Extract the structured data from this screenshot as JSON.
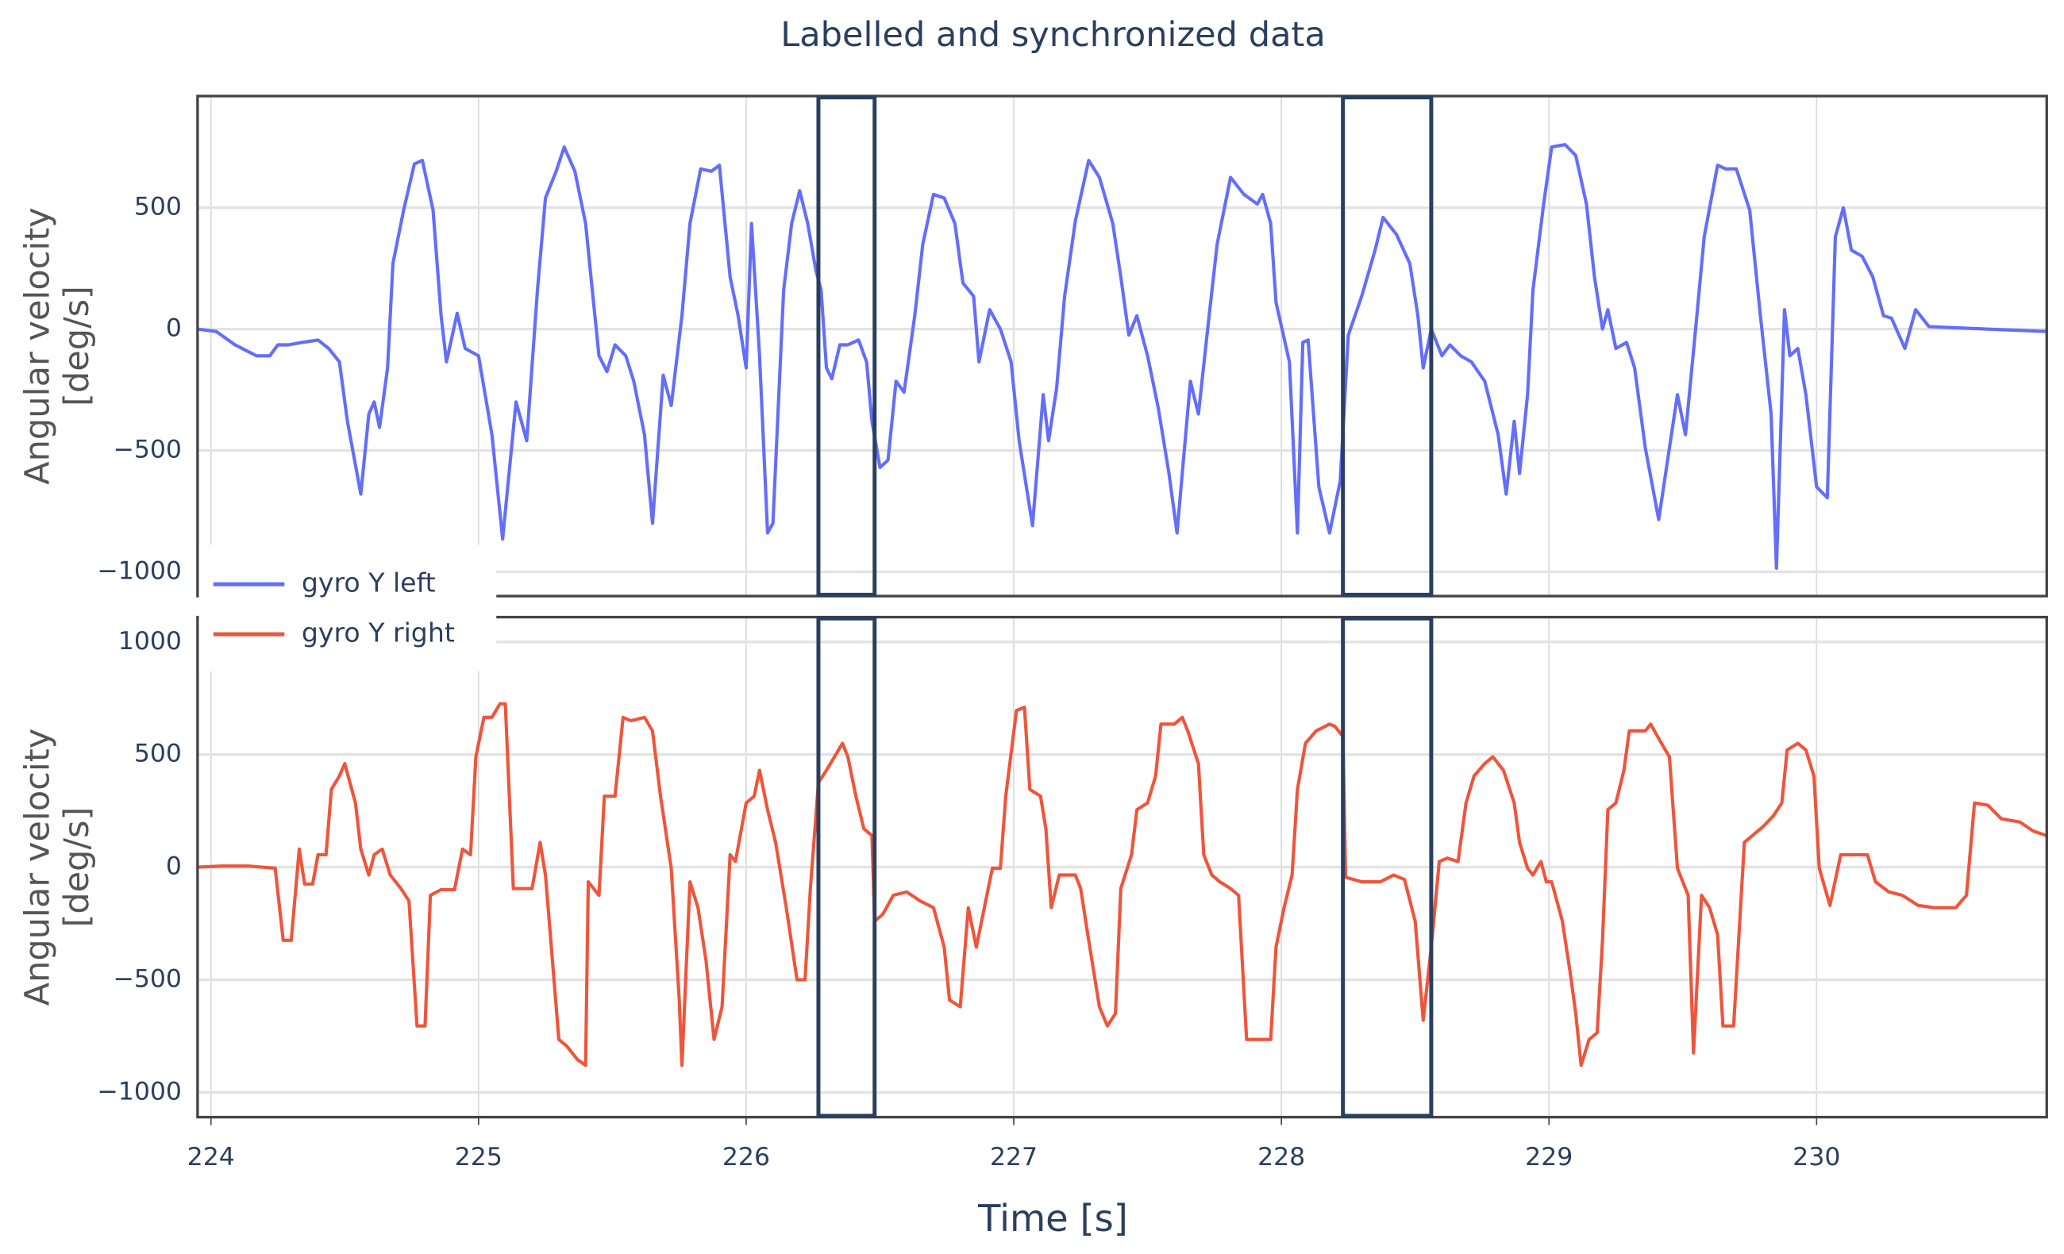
{
  "chart_data": [
    {
      "type": "line",
      "title": "Labelled and synchronized data",
      "ylabel": [
        "Angular velocity",
        "[deg/s]"
      ],
      "x": [
        223.95,
        224.02,
        224.09,
        224.17,
        224.22,
        224.25,
        224.29,
        224.34,
        224.4,
        224.44,
        224.48,
        224.51,
        224.56,
        224.59,
        224.61,
        224.63,
        224.66,
        224.68,
        224.72,
        224.76,
        224.79,
        224.83,
        224.86,
        224.88,
        224.92,
        224.95,
        225.0,
        225.05,
        225.09,
        225.14,
        225.18,
        225.22,
        225.25,
        225.29,
        225.32,
        225.36,
        225.4,
        225.42,
        225.45,
        225.48,
        225.51,
        225.55,
        225.58,
        225.62,
        225.65,
        225.69,
        225.72,
        225.76,
        225.79,
        225.83,
        225.87,
        225.9,
        225.94,
        225.97,
        226.0,
        226.02,
        226.05,
        226.08,
        226.1,
        226.14,
        226.17,
        226.2,
        226.23,
        226.26,
        226.28,
        226.3,
        226.32,
        226.35,
        226.38,
        226.42,
        226.45,
        226.47,
        226.5,
        226.53,
        226.56,
        226.59,
        226.63,
        226.66,
        226.7,
        226.74,
        226.78,
        226.81,
        226.85,
        226.87,
        226.91,
        226.95,
        226.99,
        227.02,
        227.07,
        227.11,
        227.13,
        227.16,
        227.19,
        227.23,
        227.28,
        227.32,
        227.37,
        227.4,
        227.43,
        227.46,
        227.5,
        227.54,
        227.58,
        227.61,
        227.66,
        227.69,
        227.73,
        227.76,
        227.81,
        227.86,
        227.91,
        227.93,
        227.96,
        227.98,
        228.03,
        228.06,
        228.08,
        228.1,
        228.14,
        228.18,
        228.22,
        228.25,
        228.3,
        228.35,
        228.38,
        228.43,
        228.48,
        228.51,
        228.53,
        228.56,
        228.6,
        228.63,
        228.67,
        228.71,
        228.76,
        228.81,
        228.84,
        228.87,
        228.89,
        228.92,
        228.94,
        228.98,
        229.01,
        229.06,
        229.1,
        229.14,
        229.17,
        229.2,
        229.22,
        229.25,
        229.29,
        229.32,
        229.36,
        229.41,
        229.45,
        229.48,
        229.51,
        229.55,
        229.58,
        229.63,
        229.66,
        229.7,
        229.75,
        229.79,
        229.83,
        229.85,
        229.88,
        229.9,
        229.93,
        229.96,
        230.0,
        230.04,
        230.07,
        230.1,
        230.13,
        230.17,
        230.21,
        230.25,
        230.28,
        230.33,
        230.37,
        230.42,
        230.86
      ],
      "series": [
        {
          "name": "gyro Y left",
          "color": "#636efa",
          "values": [
            0,
            -10,
            -65,
            -110,
            -110,
            -65,
            -65,
            -55,
            -45,
            -80,
            -135,
            -380,
            -680,
            -350,
            -300,
            -405,
            -160,
            270,
            490,
            680,
            695,
            490,
            55,
            -135,
            65,
            -80,
            -110,
            -435,
            -865,
            -300,
            -460,
            160,
            540,
            650,
            750,
            650,
            435,
            215,
            -110,
            -175,
            -65,
            -110,
            -215,
            -435,
            -800,
            -190,
            -315,
            55,
            435,
            660,
            650,
            675,
            215,
            55,
            -160,
            435,
            -110,
            -840,
            -800,
            160,
            435,
            570,
            435,
            245,
            160,
            -160,
            -205,
            -65,
            -65,
            -45,
            -135,
            -380,
            -570,
            -540,
            -215,
            -260,
            55,
            350,
            555,
            540,
            435,
            190,
            135,
            -135,
            80,
            0,
            -135,
            -460,
            -810,
            -270,
            -460,
            -245,
            135,
            445,
            695,
            625,
            435,
            215,
            -25,
            55,
            -110,
            -325,
            -595,
            -840,
            -215,
            -350,
            55,
            350,
            625,
            555,
            515,
            555,
            435,
            110,
            -135,
            -840,
            -55,
            -45,
            -650,
            -840,
            -625,
            -25,
            135,
            325,
            460,
            390,
            270,
            55,
            -160,
            0,
            -110,
            -65,
            -110,
            -135,
            -215,
            -435,
            -680,
            -380,
            -595,
            -270,
            160,
            515,
            750,
            760,
            715,
            515,
            215,
            0,
            80,
            -80,
            -55,
            -160,
            -490,
            -785,
            -490,
            -270,
            -435,
            25,
            380,
            675,
            660,
            660,
            490,
            55,
            -350,
            -985,
            80,
            -110,
            -80,
            -270,
            -650,
            -695,
            380,
            500,
            325,
            300,
            215,
            55,
            45,
            -80,
            80,
            10,
            -10
          ]
        }
      ],
      "xlim": [
        223.95,
        230.86
      ],
      "xticks": [
        224,
        225,
        226,
        227,
        228,
        229,
        230
      ],
      "xticklabels": false,
      "ylim": [
        -1100,
        960
      ],
      "yticks": [
        {
          "value": -1000,
          "label": "−1000"
        },
        {
          "value": -500,
          "label": "−500"
        },
        0,
        500
      ],
      "grid": true,
      "highlights": [
        [
          226.27,
          226.48
        ],
        [
          228.23,
          228.56
        ]
      ]
    },
    {
      "type": "line",
      "xlabel": "Time [s]",
      "ylabel": [
        "Angular velocity",
        "[deg/s]"
      ],
      "x": [
        223.95,
        224.04,
        224.14,
        224.24,
        224.27,
        224.3,
        224.33,
        224.35,
        224.38,
        224.4,
        224.43,
        224.45,
        224.48,
        224.5,
        224.54,
        224.56,
        224.59,
        224.61,
        224.64,
        224.67,
        224.71,
        224.74,
        224.77,
        224.8,
        224.82,
        224.86,
        224.91,
        224.94,
        224.97,
        224.99,
        225.02,
        225.05,
        225.08,
        225.1,
        225.13,
        225.16,
        225.2,
        225.23,
        225.25,
        225.27,
        225.3,
        225.33,
        225.37,
        225.4,
        225.41,
        225.45,
        225.47,
        225.51,
        225.54,
        225.57,
        225.62,
        225.65,
        225.68,
        225.72,
        225.75,
        225.76,
        225.79,
        225.82,
        225.85,
        225.88,
        225.91,
        225.94,
        225.96,
        226.0,
        226.03,
        226.05,
        226.08,
        226.11,
        226.15,
        226.19,
        226.22,
        226.24,
        226.27,
        226.3,
        226.33,
        226.36,
        226.38,
        226.41,
        226.44,
        226.47,
        226.48,
        226.51,
        226.55,
        226.6,
        226.65,
        226.7,
        226.74,
        226.76,
        226.8,
        226.83,
        226.86,
        226.89,
        226.92,
        226.95,
        226.97,
        227.01,
        227.04,
        227.06,
        227.1,
        227.12,
        227.14,
        227.17,
        227.2,
        227.23,
        227.25,
        227.28,
        227.32,
        227.35,
        227.38,
        227.4,
        227.44,
        227.46,
        227.5,
        227.53,
        227.55,
        227.6,
        227.63,
        227.65,
        227.69,
        227.71,
        227.74,
        227.77,
        227.81,
        227.84,
        227.87,
        227.92,
        227.96,
        227.98,
        228.01,
        228.04,
        228.06,
        228.09,
        228.13,
        228.18,
        228.2,
        228.23,
        228.24,
        228.3,
        228.37,
        228.42,
        228.46,
        228.5,
        228.53,
        228.56,
        228.59,
        228.62,
        228.66,
        228.69,
        228.72,
        228.76,
        228.79,
        228.83,
        228.87,
        228.89,
        228.92,
        228.94,
        228.97,
        228.99,
        229.01,
        229.05,
        229.08,
        229.1,
        229.12,
        229.15,
        229.18,
        229.2,
        229.22,
        229.25,
        229.28,
        229.3,
        229.36,
        229.38,
        229.42,
        229.45,
        229.48,
        229.52,
        229.54,
        229.57,
        229.6,
        229.63,
        229.65,
        229.69,
        229.73,
        229.76,
        229.8,
        229.84,
        229.87,
        229.89,
        229.93,
        229.96,
        229.99,
        230.01,
        230.05,
        230.09,
        230.15,
        230.19,
        230.22,
        230.27,
        230.32,
        230.38,
        230.44,
        230.52,
        230.56,
        230.59,
        230.64,
        230.69,
        230.76,
        230.81,
        230.86
      ],
      "series": [
        {
          "name": "gyro Y right",
          "color": "#ef553b",
          "values": [
            0,
            5,
            5,
            -5,
            -325,
            -325,
            80,
            -75,
            -75,
            55,
            55,
            345,
            405,
            460,
            285,
            80,
            -35,
            55,
            80,
            -35,
            -95,
            -150,
            -705,
            -705,
            -125,
            -100,
            -100,
            80,
            55,
            490,
            665,
            665,
            725,
            725,
            -95,
            -95,
            -95,
            110,
            -35,
            -325,
            -765,
            -795,
            -855,
            -880,
            -65,
            -125,
            315,
            315,
            665,
            650,
            665,
            605,
            315,
            -5,
            -590,
            -880,
            -65,
            -180,
            -415,
            -765,
            -620,
            55,
            25,
            285,
            315,
            430,
            255,
            110,
            -180,
            -500,
            -500,
            -95,
            375,
            430,
            490,
            550,
            490,
            315,
            170,
            140,
            -240,
            -210,
            -125,
            -110,
            -150,
            -180,
            -355,
            -590,
            -620,
            -180,
            -355,
            -180,
            -5,
            -5,
            315,
            695,
            710,
            345,
            315,
            170,
            -180,
            -35,
            -35,
            -35,
            -95,
            -325,
            -620,
            -705,
            -650,
            -95,
            55,
            255,
            285,
            405,
            635,
            635,
            665,
            605,
            460,
            55,
            -35,
            -65,
            -95,
            -125,
            -765,
            -765,
            -765,
            -355,
            -180,
            -35,
            345,
            550,
            605,
            635,
            625,
            580,
            -45,
            -65,
            -65,
            -35,
            -55,
            -240,
            -680,
            -355,
            25,
            40,
            25,
            285,
            405,
            460,
            490,
            430,
            285,
            110,
            -5,
            -35,
            25,
            -65,
            -65,
            -240,
            -475,
            -650,
            -880,
            -765,
            -735,
            -325,
            255,
            285,
            430,
            605,
            605,
            635,
            550,
            490,
            -5,
            -125,
            -825,
            -125,
            -180,
            -300,
            -705,
            -705,
            110,
            140,
            180,
            230,
            285,
            520,
            550,
            520,
            405,
            -5,
            -170,
            55,
            55,
            55,
            -65,
            -110,
            -125,
            -170,
            -180,
            -180,
            -125,
            285,
            275,
            215,
            200,
            160,
            140
          ]
        }
      ],
      "xlim": [
        223.95,
        230.86
      ],
      "xticks": [
        224,
        225,
        226,
        227,
        228,
        229,
        230
      ],
      "xticklabels": true,
      "ylim": [
        -1110,
        1110
      ],
      "yticks": [
        {
          "value": -1000,
          "label": "−1000"
        },
        {
          "value": -500,
          "label": "−500"
        },
        0,
        500,
        1000
      ],
      "grid": true,
      "highlights": [
        [
          226.27,
          226.48
        ],
        [
          228.23,
          228.56
        ]
      ]
    }
  ]
}
